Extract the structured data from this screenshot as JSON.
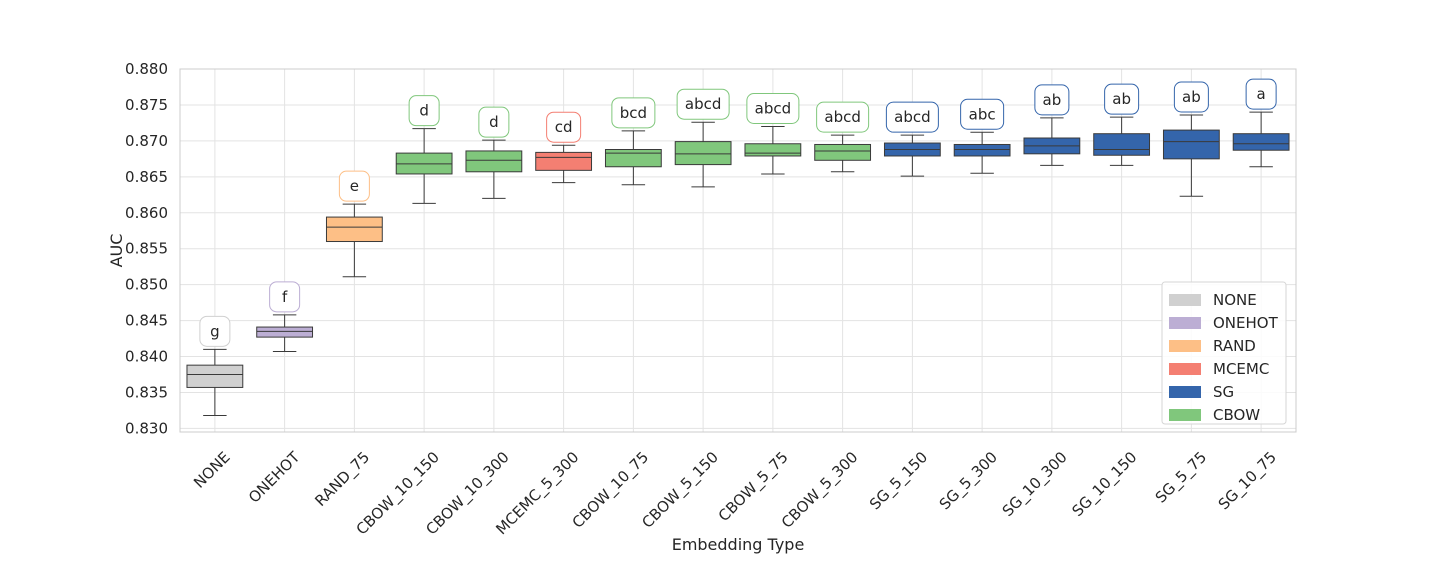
{
  "chart_data": {
    "type": "box",
    "title": "",
    "xlabel": "Embedding Type",
    "ylabel": "AUC",
    "ylim": [
      0.8295,
      0.88
    ],
    "yticks": [
      "0.830",
      "0.835",
      "0.840",
      "0.845",
      "0.850",
      "0.855",
      "0.860",
      "0.865",
      "0.870",
      "0.875",
      "0.880"
    ],
    "grid": true,
    "legend_position": "lower-right",
    "group_colors": {
      "NONE": "#d0d0d0",
      "ONEHOT": "#bcaed4",
      "RAND": "#fdbf86",
      "MCEMC": "#f47f72",
      "SG": "#3465ab",
      "CBOW": "#80c77c"
    },
    "legend": [
      "NONE",
      "ONEHOT",
      "RAND",
      "MCEMC",
      "SG",
      "CBOW"
    ],
    "boxes": [
      {
        "category": "NONE",
        "group": "NONE",
        "whisker_low": 0.8318,
        "q1": 0.8357,
        "median": 0.8375,
        "q3": 0.8388,
        "whisker_high": 0.841,
        "letters": "g"
      },
      {
        "category": "ONEHOT",
        "group": "ONEHOT",
        "whisker_low": 0.8407,
        "q1": 0.8427,
        "median": 0.8435,
        "q3": 0.8441,
        "whisker_high": 0.8458,
        "letters": "f"
      },
      {
        "category": "RAND_75",
        "group": "RAND",
        "whisker_low": 0.8511,
        "q1": 0.856,
        "median": 0.858,
        "q3": 0.8594,
        "whisker_high": 0.8612,
        "letters": "e"
      },
      {
        "category": "CBOW_10_150",
        "group": "CBOW",
        "whisker_low": 0.8613,
        "q1": 0.8654,
        "median": 0.8668,
        "q3": 0.8683,
        "whisker_high": 0.8717,
        "letters": "d"
      },
      {
        "category": "CBOW_10_300",
        "group": "CBOW",
        "whisker_low": 0.862,
        "q1": 0.8657,
        "median": 0.8673,
        "q3": 0.8686,
        "whisker_high": 0.8701,
        "letters": "d"
      },
      {
        "category": "MCEMC_5_300",
        "group": "MCEMC",
        "whisker_low": 0.8642,
        "q1": 0.8659,
        "median": 0.8677,
        "q3": 0.8684,
        "whisker_high": 0.8694,
        "letters": "cd"
      },
      {
        "category": "CBOW_10_75",
        "group": "CBOW",
        "whisker_low": 0.8639,
        "q1": 0.8664,
        "median": 0.8683,
        "q3": 0.8688,
        "whisker_high": 0.8714,
        "letters": "bcd"
      },
      {
        "category": "CBOW_5_150",
        "group": "CBOW",
        "whisker_low": 0.8636,
        "q1": 0.8667,
        "median": 0.8682,
        "q3": 0.8699,
        "whisker_high": 0.8726,
        "letters": "abcd"
      },
      {
        "category": "CBOW_5_75",
        "group": "CBOW",
        "whisker_low": 0.8654,
        "q1": 0.8679,
        "median": 0.8683,
        "q3": 0.8696,
        "whisker_high": 0.872,
        "letters": "abcd"
      },
      {
        "category": "CBOW_5_300",
        "group": "CBOW",
        "whisker_low": 0.8657,
        "q1": 0.8673,
        "median": 0.8686,
        "q3": 0.8695,
        "whisker_high": 0.8708,
        "letters": "abcd"
      },
      {
        "category": "SG_5_150",
        "group": "SG",
        "whisker_low": 0.8651,
        "q1": 0.8679,
        "median": 0.8688,
        "q3": 0.8697,
        "whisker_high": 0.8708,
        "letters": "abcd"
      },
      {
        "category": "SG_5_300",
        "group": "SG",
        "whisker_low": 0.8655,
        "q1": 0.8679,
        "median": 0.8688,
        "q3": 0.8695,
        "whisker_high": 0.8712,
        "letters": "abc"
      },
      {
        "category": "SG_10_300",
        "group": "SG",
        "whisker_low": 0.8666,
        "q1": 0.8682,
        "median": 0.8693,
        "q3": 0.8704,
        "whisker_high": 0.8732,
        "letters": "ab"
      },
      {
        "category": "SG_10_150",
        "group": "SG",
        "whisker_low": 0.8666,
        "q1": 0.868,
        "median": 0.8688,
        "q3": 0.871,
        "whisker_high": 0.8733,
        "letters": "ab"
      },
      {
        "category": "SG_5_75",
        "group": "SG",
        "whisker_low": 0.8623,
        "q1": 0.8675,
        "median": 0.8699,
        "q3": 0.8715,
        "whisker_high": 0.8736,
        "letters": "ab"
      },
      {
        "category": "SG_10_75",
        "group": "SG",
        "whisker_low": 0.8664,
        "q1": 0.8687,
        "median": 0.8696,
        "q3": 0.871,
        "whisker_high": 0.874,
        "letters": "a"
      }
    ]
  }
}
